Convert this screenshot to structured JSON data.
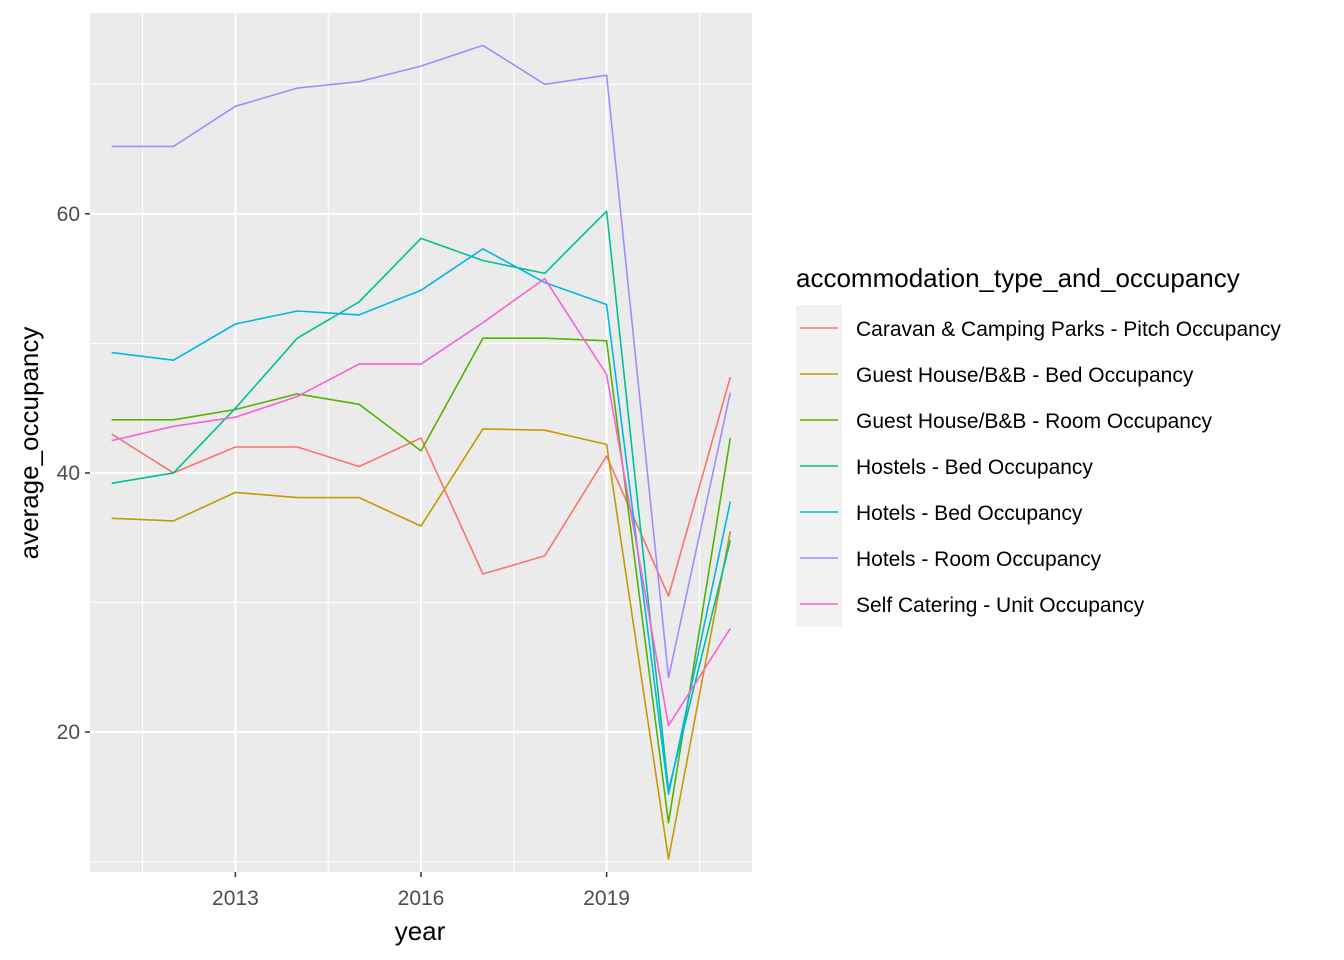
{
  "chart_data": {
    "type": "line",
    "xlabel": "year",
    "ylabel": "average_occupancy",
    "xlim": [
      2010.65,
      2021.35
    ],
    "ylim": [
      9.2,
      75.5
    ],
    "x_major_ticks": [
      2013,
      2016,
      2019
    ],
    "x_minor_ticks": [
      2011.5,
      2014.5,
      2017.5,
      2020.5
    ],
    "y_major_ticks": [
      20,
      40,
      60
    ],
    "y_minor_ticks": [
      10,
      30,
      50,
      70
    ],
    "x_tick_labels": [
      "2013",
      "2016",
      "2019"
    ],
    "y_tick_labels": [
      "20",
      "40",
      "60"
    ],
    "grid": true,
    "panel_background": "#ebebeb",
    "legend": {
      "title": "accommodation_type_and_occupancy",
      "position": "right"
    },
    "x": [
      2011,
      2012,
      2013,
      2014,
      2015,
      2016,
      2017,
      2018,
      2019,
      2020,
      2021
    ],
    "series": [
      {
        "name": "Caravan & Camping Parks - Pitch Occupancy",
        "color": "#F8766D",
        "values": [
          43.0,
          40.0,
          42.0,
          42.0,
          40.5,
          42.7,
          32.2,
          33.6,
          41.3,
          30.5,
          47.4
        ]
      },
      {
        "name": "Guest House/B&B - Bed Occupancy",
        "color": "#C49A00",
        "values": [
          36.5,
          36.3,
          38.5,
          38.1,
          38.1,
          35.9,
          43.4,
          43.3,
          42.2,
          10.2,
          35.5
        ]
      },
      {
        "name": "Guest House/B&B - Room Occupancy",
        "color": "#53B400",
        "values": [
          44.1,
          44.1,
          44.9,
          46.1,
          45.3,
          41.7,
          50.4,
          50.4,
          50.2,
          13.0,
          42.7
        ]
      },
      {
        "name": "Hostels - Bed Occupancy",
        "color": "#00C094",
        "values": [
          39.2,
          40.0,
          45.0,
          50.4,
          53.2,
          58.1,
          56.4,
          55.4,
          60.2,
          15.5,
          34.8
        ]
      },
      {
        "name": "Hotels - Bed Occupancy",
        "color": "#00B6EB",
        "values": [
          49.3,
          48.7,
          51.5,
          52.5,
          52.2,
          54.1,
          57.3,
          54.7,
          53.0,
          15.2,
          37.8
        ]
      },
      {
        "name": "Hotels - Room Occupancy",
        "color": "#A58AFF",
        "values": [
          65.2,
          65.2,
          68.3,
          69.7,
          70.2,
          71.4,
          73.0,
          70.0,
          70.7,
          24.2,
          46.2
        ]
      },
      {
        "name": "Self Catering - Unit Occupancy",
        "color": "#FB61D7",
        "values": [
          42.5,
          43.6,
          44.3,
          45.9,
          48.4,
          48.4,
          51.6,
          55.0,
          47.6,
          20.5,
          28.0
        ]
      }
    ]
  }
}
